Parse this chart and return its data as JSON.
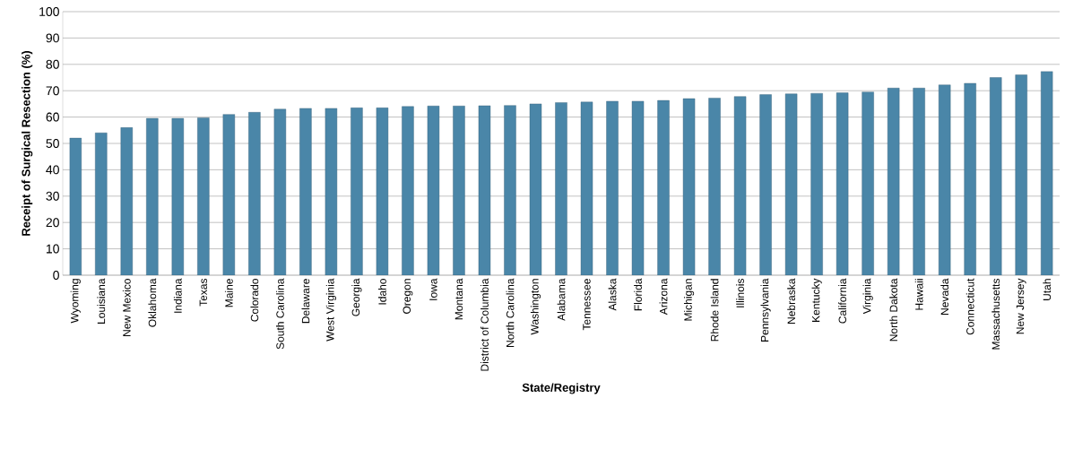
{
  "chart_data": {
    "type": "bar",
    "xlabel": "State/Registry",
    "ylabel": "Receipt of Surgical Resection (%)",
    "categories": [
      "Wyoming",
      "Louisiana",
      "New Mexico",
      "Oklahoma",
      "Indiana",
      "Texas",
      "Maine",
      "Colorado",
      "South Carolina",
      "Delaware",
      "West Virginia",
      "Georgia",
      "Idaho",
      "Oregon",
      "Iowa",
      "Montana",
      "District of Columbia",
      "North Carolina",
      "Washington",
      "Alabama",
      "Tennessee",
      "Alaska",
      "Florida",
      "Arizona",
      "Michigan",
      "Rhode Island",
      "Illinois",
      "Pennsylvania",
      "Nebraska",
      "Kentucky",
      "California",
      "Virginia",
      "North Dakota",
      "Hawaii",
      "Nevada",
      "Connecticut",
      "Massachusetts",
      "New Jersey",
      "Utah"
    ],
    "values": [
      52,
      54,
      56,
      59.5,
      59.5,
      59.7,
      61,
      61.8,
      63,
      63.3,
      63.3,
      63.5,
      63.5,
      64,
      64.2,
      64.2,
      64.3,
      64.4,
      65,
      65.5,
      65.7,
      66,
      66,
      66.3,
      67,
      67.2,
      67.8,
      68.5,
      68.8,
      69,
      69.2,
      69.5,
      71,
      71,
      72.2,
      72.8,
      75,
      76,
      77.3
    ],
    "color": "#4a86a8",
    "ylim": [
      0,
      100
    ],
    "yticks": [
      0,
      10,
      20,
      30,
      40,
      50,
      60,
      70,
      80,
      90,
      100
    ],
    "grid": "y"
  }
}
